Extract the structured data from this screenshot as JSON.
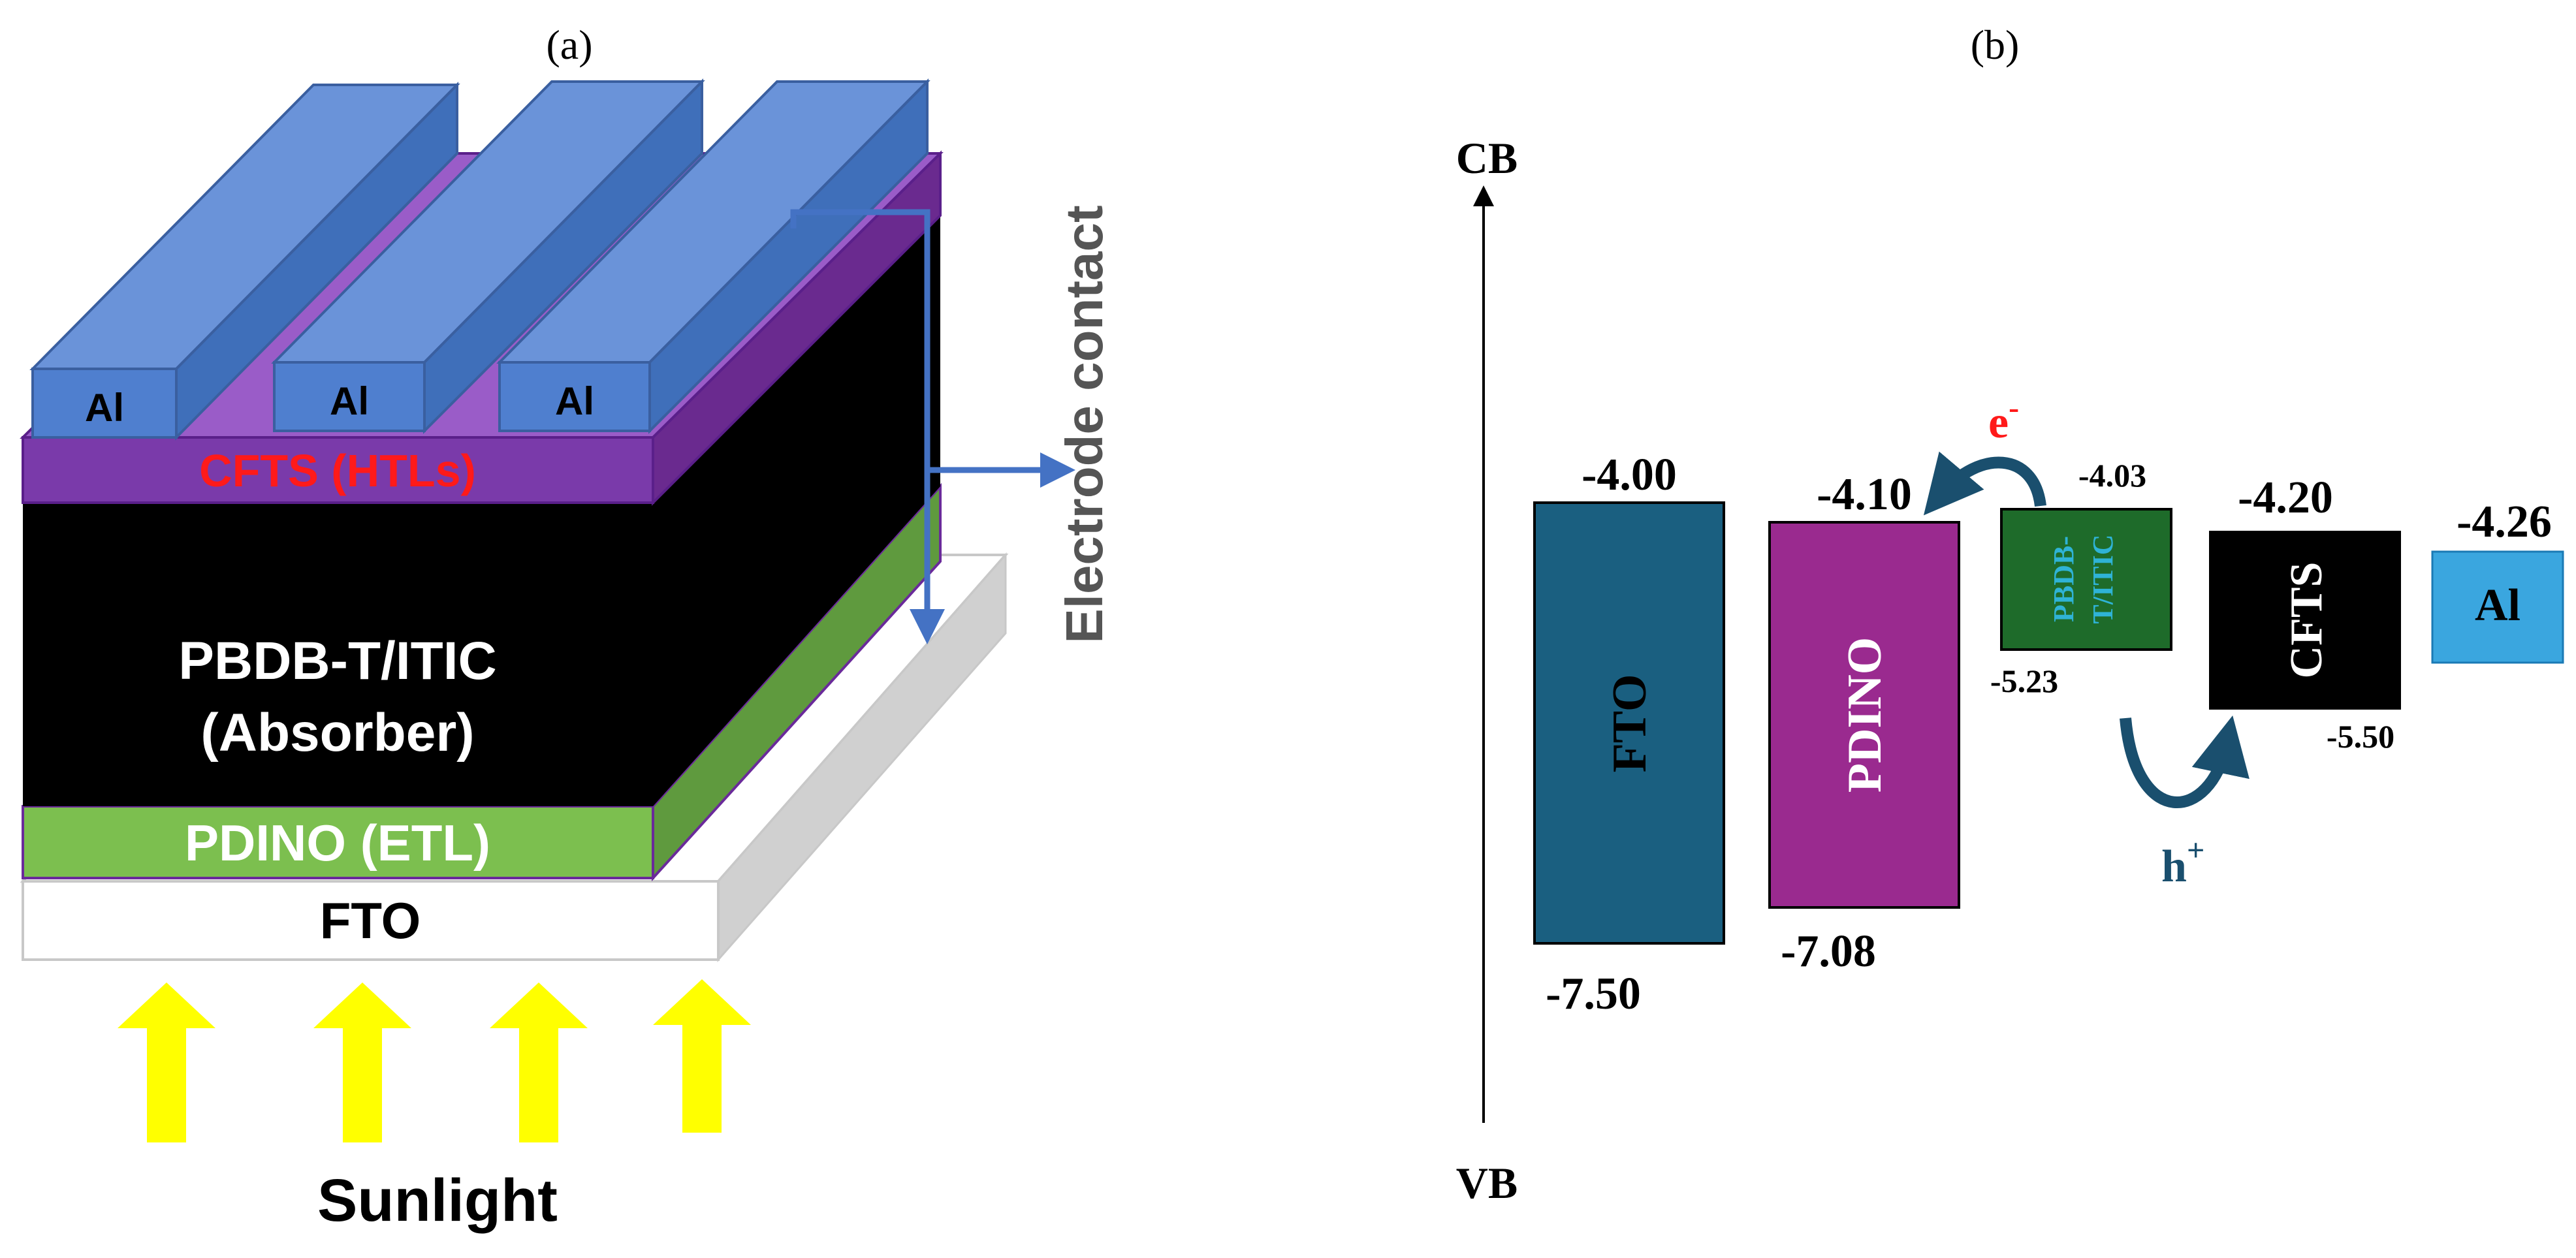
{
  "panel_a": {
    "label": "(a)",
    "electrodes": [
      "Al",
      "Al",
      "Al"
    ],
    "layers": {
      "htl": "CFTS (HTLs)",
      "absorber_line1": "PBDB-T/ITIC",
      "absorber_line2": "(Absorber)",
      "etl": "PDINO (ETL)",
      "substrate": "FTO"
    },
    "electrode_contact": "Electrode contact",
    "sunlight": "Sunlight",
    "colors": {
      "electrode": "#6a93d9",
      "htl": "#7a3aaa",
      "absorber": "#000000",
      "etl": "#7cbf4f",
      "substrate": "#ffffff",
      "arrow": "#ffff00",
      "htl_text": "#ff1a1a"
    }
  },
  "panel_b": {
    "label": "(b)",
    "cb_label": "CB",
    "vb_label": "VB",
    "materials": [
      {
        "name": "FTO",
        "cb": "-4.00",
        "vb": "-7.50",
        "color": "#1a5f80"
      },
      {
        "name": "PDINO",
        "cb": "-4.10",
        "vb": "-7.08",
        "color": "#9a2a8f"
      },
      {
        "name": "PBDB-T/ITIC",
        "cb": "-4.03",
        "vb": "-5.23",
        "color": "#1e6b2a"
      },
      {
        "name": "CFTS",
        "cb": "-4.20",
        "vb": "-5.50",
        "color": "#000000"
      },
      {
        "name": "Al",
        "cb": "-4.26",
        "color": "#3aa6df"
      }
    ],
    "absorber_label_line1": "PBDB-",
    "absorber_label_line2": "T/ITIC",
    "electron": "e",
    "electron_sup": "-",
    "hole": "h",
    "hole_sup": "+"
  }
}
